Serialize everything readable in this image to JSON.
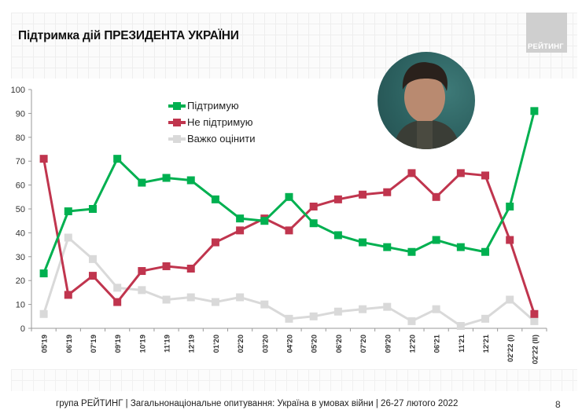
{
  "title": "Підтримка дій ПРЕЗИДЕНТА УКРАЇНИ",
  "logo": {
    "text": "РЕЙТИНГ",
    "color": "#cfcfcf"
  },
  "photo": {
    "alt": "portrait-photo"
  },
  "footer": {
    "text": "група РЕЙТИНГ | Загальнонаціональне опитування: Україна в умовах війни | 26-27 лютого 2022",
    "page": "8"
  },
  "legend": [
    {
      "label": "Підтримую",
      "color": "#00b050"
    },
    {
      "label": "Не підтримую",
      "color": "#c0354e"
    },
    {
      "label": "Важко оцінити",
      "color": "#d9d9d9"
    }
  ],
  "chart_data": {
    "type": "line",
    "title": "Підтримка дій ПРЕЗИДЕНТА УКРАЇНИ",
    "xlabel": "",
    "ylabel": "",
    "ylim": [
      0,
      100
    ],
    "yticks": [
      0,
      10,
      20,
      30,
      40,
      50,
      60,
      70,
      80,
      90,
      100
    ],
    "grid": false,
    "legend_position": "top-center",
    "categories": [
      "05'19",
      "06'19",
      "07'19",
      "09'19",
      "10'19",
      "11'19",
      "12'19",
      "01'20",
      "02'20",
      "03'20",
      "04'20",
      "05'20",
      "06'20",
      "07'20",
      "09'20",
      "12'20",
      "06'21",
      "11'21",
      "12'21",
      "02'22 (I)",
      "02'22 (II)"
    ],
    "series": [
      {
        "name": "Підтримую",
        "color": "#00b050",
        "values": [
          23,
          49,
          50,
          71,
          61,
          63,
          62,
          54,
          46,
          45,
          55,
          44,
          39,
          36,
          34,
          32,
          37,
          34,
          32,
          51,
          91
        ]
      },
      {
        "name": "Не підтримую",
        "color": "#c0354e",
        "values": [
          71,
          14,
          22,
          11,
          24,
          26,
          25,
          36,
          41,
          46,
          41,
          51,
          54,
          56,
          57,
          65,
          55,
          65,
          64,
          37,
          6
        ]
      },
      {
        "name": "Важко оцінити",
        "color": "#d9d9d9",
        "values": [
          6,
          38,
          29,
          17,
          16,
          12,
          13,
          11,
          13,
          10,
          4,
          5,
          7,
          8,
          9,
          3,
          8,
          1,
          4,
          12,
          3
        ]
      }
    ]
  }
}
